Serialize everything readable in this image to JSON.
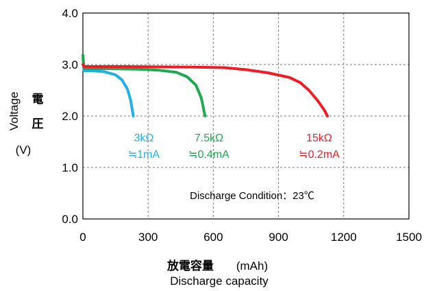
{
  "chart_data": {
    "type": "line",
    "x_range": [
      0,
      1500
    ],
    "y_range": [
      0.0,
      4.0
    ],
    "x_ticks": [
      "0",
      "300",
      "600",
      "900",
      "1200",
      "1500"
    ],
    "y_ticks": [
      "0.0",
      "1.0",
      "2.0",
      "3.0",
      "4.0"
    ],
    "grid": true,
    "xlabel_jp": "放電容量",
    "xlabel_unit": "(mAh)",
    "xlabel_en": "Discharge capacity",
    "ylabel_en": "Voltage",
    "ylabel_jp_1": "電",
    "ylabel_jp_2": "圧",
    "ylabel_unit": "(V)",
    "condition": "Discharge Condition：23℃",
    "series": [
      {
        "color": "#1fb0e8",
        "label_line1": "3kΩ",
        "label_line2": "≒1mA",
        "points": [
          [
            0,
            3.12
          ],
          [
            5,
            2.88
          ],
          [
            40,
            2.88
          ],
          [
            100,
            2.86
          ],
          [
            150,
            2.8
          ],
          [
            180,
            2.7
          ],
          [
            205,
            2.52
          ],
          [
            220,
            2.3
          ],
          [
            232,
            2.0
          ]
        ]
      },
      {
        "color": "#1fa84f",
        "label_line1": "7.5kΩ",
        "label_line2": "≒0.4mA",
        "points": [
          [
            0,
            3.18
          ],
          [
            6,
            2.92
          ],
          [
            100,
            2.92
          ],
          [
            250,
            2.91
          ],
          [
            350,
            2.89
          ],
          [
            430,
            2.85
          ],
          [
            480,
            2.76
          ],
          [
            520,
            2.6
          ],
          [
            545,
            2.35
          ],
          [
            562,
            2.0
          ]
        ]
      },
      {
        "color": "#ee1c25",
        "label_line1": "15kΩ",
        "label_line2": "≒0.2mA",
        "points": [
          [
            0,
            3.0
          ],
          [
            6,
            2.96
          ],
          [
            200,
            2.96
          ],
          [
            500,
            2.95
          ],
          [
            650,
            2.94
          ],
          [
            750,
            2.9
          ],
          [
            850,
            2.84
          ],
          [
            950,
            2.75
          ],
          [
            1000,
            2.65
          ],
          [
            1040,
            2.5
          ],
          [
            1080,
            2.3
          ],
          [
            1110,
            2.12
          ],
          [
            1125,
            2.0
          ]
        ]
      }
    ]
  }
}
